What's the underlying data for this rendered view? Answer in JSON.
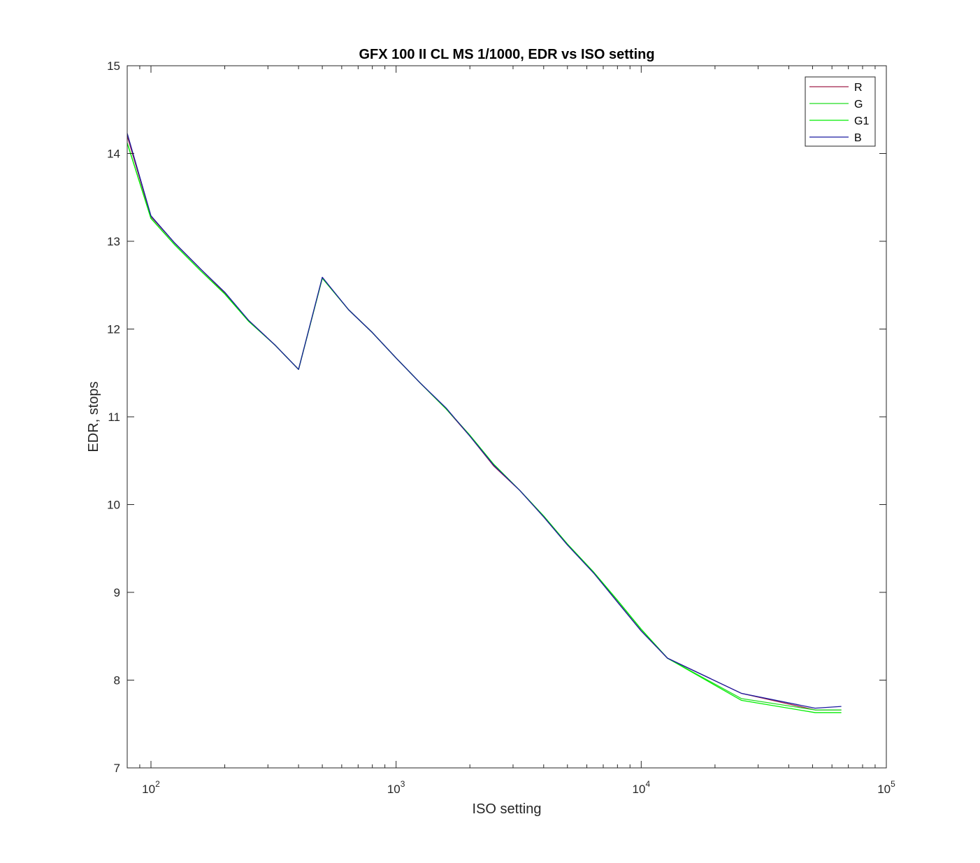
{
  "chart_data": {
    "type": "line",
    "title": "GFX 100 II CL MS 1/1000, EDR vs ISO setting",
    "xlabel": "ISO setting",
    "ylabel": "EDR, stops",
    "xscale": "log",
    "xlim": [
      80,
      100000
    ],
    "ylim": [
      7,
      15
    ],
    "xticks": [
      100,
      1000,
      10000,
      100000
    ],
    "xtick_labels": [
      {
        "base": "10",
        "exp": "2"
      },
      {
        "base": "10",
        "exp": "3"
      },
      {
        "base": "10",
        "exp": "4"
      },
      {
        "base": "10",
        "exp": "5"
      }
    ],
    "yticks": [
      7,
      8,
      9,
      10,
      11,
      12,
      13,
      14,
      15
    ],
    "grid": false,
    "legend_position": "top-right",
    "x": [
      80,
      100,
      125,
      160,
      200,
      250,
      320,
      400,
      500,
      640,
      800,
      1000,
      1250,
      1600,
      2000,
      2500,
      3200,
      4000,
      5000,
      6400,
      8000,
      10000,
      12800,
      25600,
      51200,
      65535
    ],
    "series": [
      {
        "name": "R",
        "color": "#a0204a",
        "values": [
          14.2,
          13.28,
          12.98,
          12.68,
          12.41,
          12.1,
          11.82,
          11.54,
          12.58,
          12.22,
          11.96,
          11.67,
          11.39,
          11.09,
          10.78,
          10.44,
          10.16,
          9.86,
          9.54,
          9.22,
          8.89,
          8.56,
          8.25,
          7.85,
          7.66,
          7.66
        ]
      },
      {
        "name": "G",
        "color": "#22dd22",
        "values": [
          14.12,
          13.26,
          12.96,
          12.66,
          12.4,
          12.09,
          11.82,
          11.54,
          12.58,
          12.22,
          11.96,
          11.67,
          11.39,
          11.09,
          10.79,
          10.46,
          10.16,
          9.87,
          9.55,
          9.23,
          8.91,
          8.58,
          8.25,
          7.79,
          7.66,
          7.66
        ]
      },
      {
        "name": "G1",
        "color": "#00ee00",
        "values": [
          14.12,
          13.26,
          12.96,
          12.66,
          12.4,
          12.09,
          11.82,
          11.54,
          12.58,
          12.22,
          11.96,
          11.67,
          11.39,
          11.09,
          10.79,
          10.46,
          10.16,
          9.87,
          9.55,
          9.23,
          8.91,
          8.58,
          8.25,
          7.77,
          7.63,
          7.63
        ]
      },
      {
        "name": "B",
        "color": "#1a1aa0",
        "values": [
          14.23,
          13.29,
          12.98,
          12.68,
          12.42,
          12.1,
          11.82,
          11.54,
          12.59,
          12.22,
          11.96,
          11.67,
          11.39,
          11.1,
          10.78,
          10.45,
          10.16,
          9.86,
          9.54,
          9.22,
          8.89,
          8.56,
          8.25,
          7.85,
          7.68,
          7.7
        ]
      }
    ]
  }
}
